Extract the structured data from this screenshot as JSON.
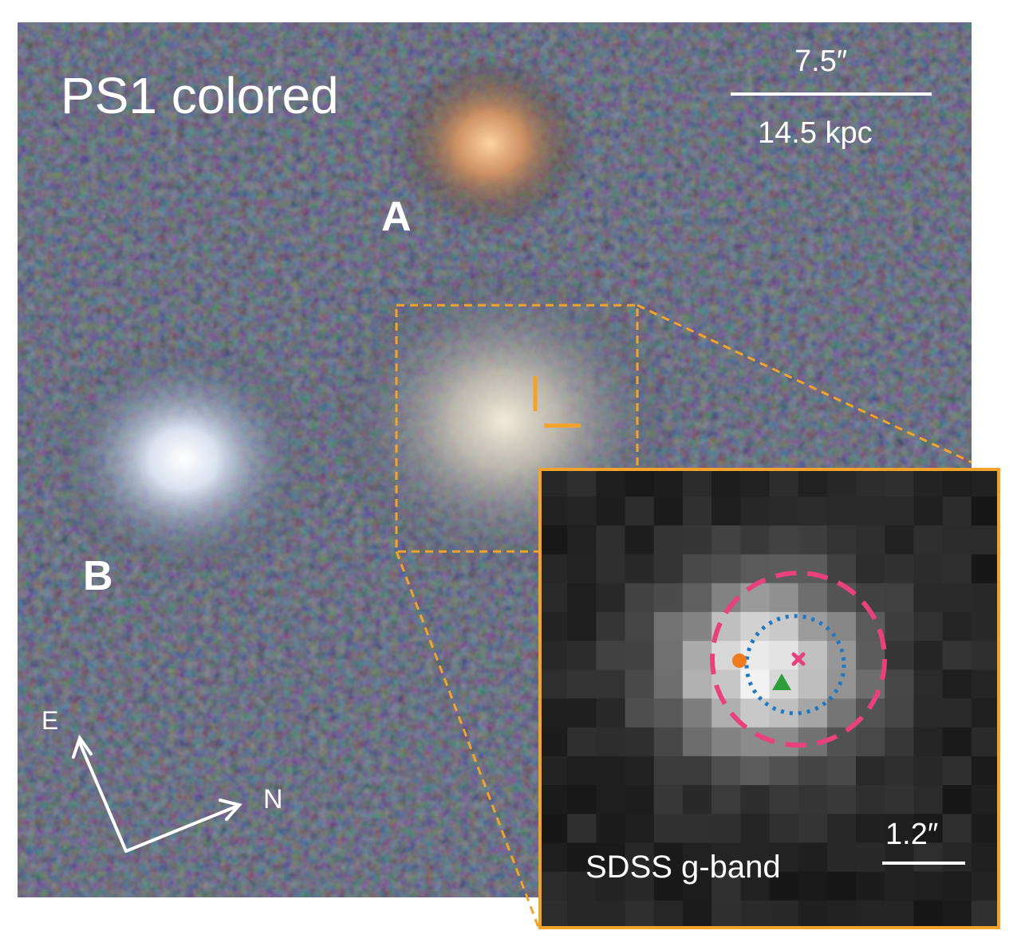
{
  "figure": {
    "panel_title": "PS1 colored",
    "label_A": "A",
    "label_B": "B",
    "compass": {
      "east": "E",
      "north": "N"
    },
    "scale_bar": {
      "angular": "7.5″",
      "physical": "14.5 kpc"
    },
    "inset": {
      "title": "SDSS g-band",
      "scale_bar": "1.2″",
      "markers": [
        {
          "name": "orange-circle",
          "color": "#f07a1f"
        },
        {
          "name": "green-triangle",
          "color": "#2e9e3a"
        },
        {
          "name": "pink-cross",
          "color": "#e8417c"
        }
      ],
      "circles": [
        {
          "name": "pink-dashed-circle",
          "color": "#e8417c"
        },
        {
          "name": "blue-dotted-circle",
          "color": "#1f78c1"
        }
      ]
    },
    "colors": {
      "frame": "#f3a32a",
      "text": "#ffffff"
    }
  }
}
